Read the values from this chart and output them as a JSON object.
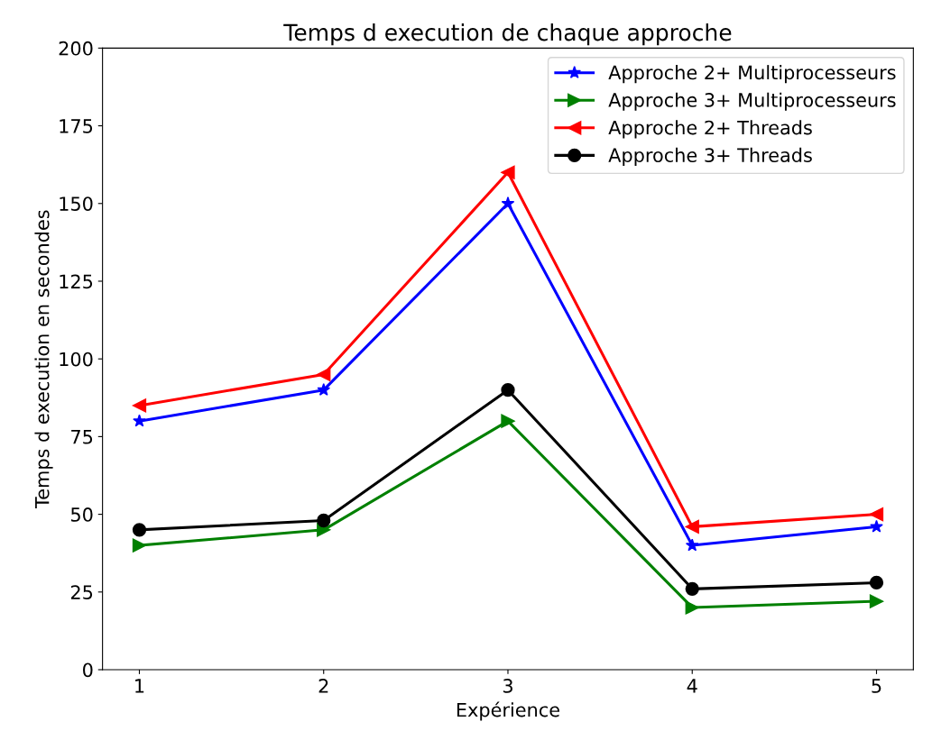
{
  "chart_data": {
    "type": "line",
    "title": "Temps d execution de chaque approche",
    "xlabel": "Expérience",
    "ylabel": "Temps d execution en secondes",
    "x": [
      1,
      2,
      3,
      4,
      5
    ],
    "xlim": [
      0.8,
      5.2
    ],
    "xticks": [
      1,
      2,
      3,
      4,
      5
    ],
    "ylim": [
      0,
      200
    ],
    "yticks": [
      0,
      25,
      50,
      75,
      100,
      125,
      150,
      175,
      200
    ],
    "grid": false,
    "legend": "top right",
    "line_style": "solid",
    "series": [
      {
        "name": "Approche 2+ Multiprocesseurs",
        "color": "#0000ff",
        "marker": "star",
        "values": [
          80,
          90,
          150,
          40,
          46
        ]
      },
      {
        "name": "Approche 3+ Multiprocesseurs",
        "color": "#008000",
        "marker": "triangle-right",
        "values": [
          40,
          45,
          80,
          20,
          22
        ]
      },
      {
        "name": "Approche 2+ Threads",
        "color": "#ff0000",
        "marker": "triangle-left",
        "values": [
          85,
          95,
          160,
          46,
          50
        ]
      },
      {
        "name": "Approche 3+ Threads",
        "color": "#000000",
        "marker": "circle",
        "values": [
          45,
          48,
          90,
          26,
          28
        ]
      }
    ]
  }
}
